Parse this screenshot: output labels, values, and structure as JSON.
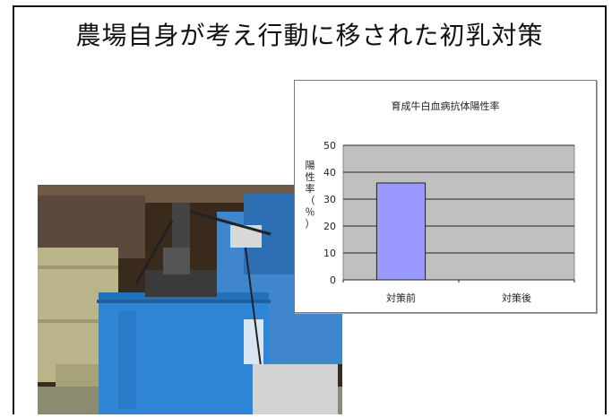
{
  "slide": {
    "title": "農場自身が考え行動に移された初乳対策"
  },
  "photo": {
    "description_icon": "photo-icon"
  },
  "colors": {
    "bar": "#9999ff",
    "plot_bg": "#c0c0c0",
    "sky": "#4a8fd8",
    "tank": "#2f86d6"
  },
  "chart_data": {
    "type": "bar",
    "title": "育成牛白血病抗体陽性率",
    "categories": [
      "対策前",
      "対策後"
    ],
    "values": [
      36,
      0
    ],
    "ylabel": "陽性率（％）",
    "ylim": [
      0,
      50
    ],
    "yticks": [
      0,
      10,
      20,
      30,
      40,
      50
    ],
    "grid": true,
    "legend": "none"
  }
}
